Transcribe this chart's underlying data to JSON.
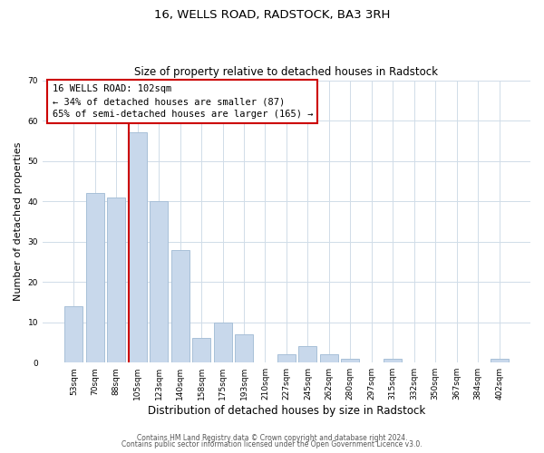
{
  "title": "16, WELLS ROAD, RADSTOCK, BA3 3RH",
  "subtitle": "Size of property relative to detached houses in Radstock",
  "xlabel": "Distribution of detached houses by size in Radstock",
  "ylabel": "Number of detached properties",
  "bar_color": "#c8d8eb",
  "bar_edge_color": "#a8c0d8",
  "vline_color": "#cc0000",
  "annotation_title": "16 WELLS ROAD: 102sqm",
  "annotation_line1": "← 34% of detached houses are smaller (87)",
  "annotation_line2": "65% of semi-detached houses are larger (165) →",
  "xlabels": [
    "53sqm",
    "70sqm",
    "88sqm",
    "105sqm",
    "123sqm",
    "140sqm",
    "158sqm",
    "175sqm",
    "193sqm",
    "210sqm",
    "227sqm",
    "245sqm",
    "262sqm",
    "280sqm",
    "297sqm",
    "315sqm",
    "332sqm",
    "350sqm",
    "367sqm",
    "384sqm",
    "402sqm"
  ],
  "bar_heights": [
    14,
    42,
    41,
    57,
    40,
    28,
    6,
    10,
    7,
    0,
    2,
    4,
    2,
    1,
    0,
    1,
    0,
    0,
    0,
    0,
    1
  ],
  "ylim": [
    0,
    70
  ],
  "yticks": [
    0,
    10,
    20,
    30,
    40,
    50,
    60,
    70
  ],
  "vline_idx": 3,
  "footer1": "Contains HM Land Registry data © Crown copyright and database right 2024.",
  "footer2": "Contains public sector information licensed under the Open Government Licence v3.0."
}
